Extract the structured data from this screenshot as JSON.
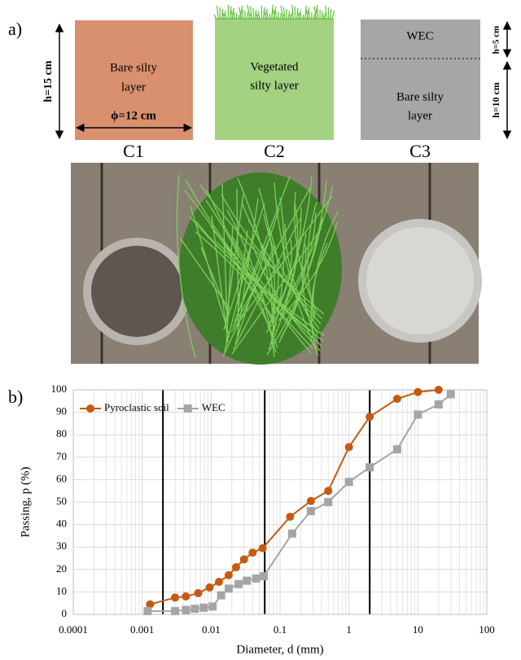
{
  "diagram": {
    "panel_a": "a)",
    "c1": {
      "height": "h=15 cm",
      "label_lines": [
        "Bare silty",
        "layer"
      ],
      "diameter": "ϕ=12 cm",
      "name": "C1"
    },
    "c2": {
      "label_lines": [
        "Vegetated",
        "silty layer"
      ],
      "name": "C2"
    },
    "c3": {
      "top_label": "WEC",
      "top_height": "h=5 cm",
      "label_lines": [
        "Bare silty",
        "layer"
      ],
      "bottom_height": "h=10 cm",
      "name": "C3"
    }
  },
  "chart_data": {
    "type": "line",
    "panel_label": "b)",
    "x_label": "Diameter, d (mm)",
    "y_label": "Passing, p (%)",
    "x_scale": "log",
    "xlim": [
      0.0001,
      100
    ],
    "xticks": [
      0.0001,
      0.001,
      0.01,
      0.1,
      1,
      10,
      100
    ],
    "ylim": [
      0,
      100
    ],
    "yticks": [
      0,
      10,
      20,
      30,
      40,
      50,
      60,
      70,
      80,
      90,
      100
    ],
    "grid": true,
    "reference_lines": [
      0.002,
      0.06,
      2
    ],
    "legend": "upper left",
    "series": [
      {
        "name": "Pyroclastic soil",
        "color": "#c55a11",
        "marker": "circle",
        "x": [
          0.0013,
          0.003,
          0.0043,
          0.0065,
          0.0095,
          0.013,
          0.018,
          0.023,
          0.03,
          0.04,
          0.056,
          0.14,
          0.28,
          0.5,
          1.0,
          2.0,
          5.0,
          10,
          20
        ],
        "values": [
          4.5,
          7.5,
          8,
          9.5,
          12,
          14.5,
          17.5,
          21,
          24.5,
          27.5,
          29.5,
          43.5,
          50.5,
          55,
          74.5,
          88,
          96,
          99,
          100
        ]
      },
      {
        "name": "WEC",
        "color": "#a5a5a5",
        "marker": "square",
        "x": [
          0.0012,
          0.003,
          0.0043,
          0.0058,
          0.0078,
          0.0105,
          0.014,
          0.018,
          0.025,
          0.033,
          0.045,
          0.058,
          0.15,
          0.28,
          0.5,
          1.0,
          2.0,
          5.0,
          10,
          20,
          30
        ],
        "values": [
          1.5,
          1.5,
          2,
          2.5,
          3,
          3.5,
          8.5,
          11.5,
          13.5,
          15,
          16,
          17,
          36,
          46,
          50,
          59,
          65.5,
          73.5,
          89,
          93.5,
          98
        ]
      }
    ]
  }
}
